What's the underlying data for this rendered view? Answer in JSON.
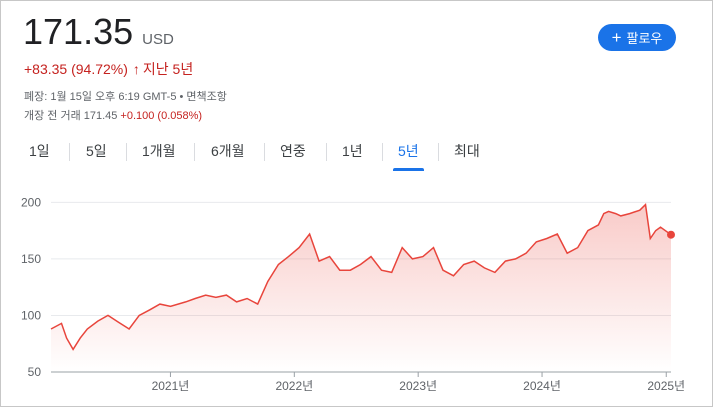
{
  "quote": {
    "price": "171.35",
    "currency": "USD",
    "change": "+83.35 (94.72%)",
    "change_arrow": "↑",
    "period": "지난 5년",
    "close_info": "폐장: 1월 15일 오후 6:19 GMT-5 • 면책조항",
    "premarket_label": "개장 전 거래 171.45",
    "premarket_change": "+0.100 (0.058%)"
  },
  "follow_button": {
    "icon": "plus-icon",
    "label": "팔로우"
  },
  "tabs": [
    {
      "label": "1일"
    },
    {
      "label": "5일"
    },
    {
      "label": "1개월"
    },
    {
      "label": "6개월"
    },
    {
      "label": "연중"
    },
    {
      "label": "1년"
    },
    {
      "label": "5년",
      "active": true
    },
    {
      "label": "최대"
    }
  ],
  "colors": {
    "accent": "#1a73e8",
    "line": "#e8453c",
    "change": "#c5221f"
  },
  "chart_data": {
    "type": "area",
    "title": "",
    "xlabel": "",
    "ylabel": "",
    "ylim": [
      50,
      210
    ],
    "y_ticks": [
      50,
      100,
      150,
      200
    ],
    "x_ticks": [
      "2021년",
      "2022년",
      "2023년",
      "2024년",
      "2025년"
    ],
    "x_tick_dates": [
      "2021-01-01",
      "2022-01-01",
      "2023-01-01",
      "2024-01-01",
      "2025-01-01"
    ],
    "x_range": [
      "2020-01-15",
      "2025-01-15"
    ],
    "grid": true,
    "series": [
      {
        "x": [
          "2020-01-15",
          "2020-02-15",
          "2020-03-01",
          "2020-03-20",
          "2020-04-10",
          "2020-05-01",
          "2020-06-01",
          "2020-07-01",
          "2020-08-01",
          "2020-09-01",
          "2020-10-01",
          "2020-11-01",
          "2020-12-01",
          "2021-01-01",
          "2021-02-15",
          "2021-03-15",
          "2021-04-15",
          "2021-05-15",
          "2021-06-15",
          "2021-07-15",
          "2021-08-15",
          "2021-09-15",
          "2021-10-15",
          "2021-11-15",
          "2021-12-15",
          "2022-01-15",
          "2022-02-15",
          "2022-03-15",
          "2022-04-15",
          "2022-05-15",
          "2022-06-15",
          "2022-07-15",
          "2022-08-15",
          "2022-09-15",
          "2022-10-15",
          "2022-11-15",
          "2022-12-15",
          "2023-01-15",
          "2023-02-15",
          "2023-03-15",
          "2023-04-15",
          "2023-05-15",
          "2023-06-15",
          "2023-07-15",
          "2023-08-15",
          "2023-09-15",
          "2023-10-15",
          "2023-11-15",
          "2023-12-15",
          "2024-01-15",
          "2024-02-15",
          "2024-03-15",
          "2024-04-15",
          "2024-05-15",
          "2024-06-15",
          "2024-07-01",
          "2024-07-15",
          "2024-08-05",
          "2024-08-20",
          "2024-09-15",
          "2024-10-15",
          "2024-11-01",
          "2024-11-15",
          "2024-12-01",
          "2024-12-15",
          "2025-01-15"
        ],
        "y": [
          88,
          93,
          80,
          70,
          80,
          88,
          95,
          100,
          94,
          88,
          100,
          105,
          110,
          108,
          112,
          115,
          118,
          116,
          118,
          112,
          115,
          110,
          130,
          145,
          152,
          160,
          172,
          148,
          152,
          140,
          140,
          145,
          152,
          140,
          138,
          160,
          150,
          152,
          160,
          140,
          135,
          145,
          148,
          142,
          138,
          148,
          150,
          155,
          165,
          168,
          172,
          155,
          160,
          175,
          180,
          190,
          192,
          190,
          188,
          190,
          193,
          198,
          168,
          175,
          178,
          171.35
        ]
      }
    ],
    "last_value": 171.35
  }
}
